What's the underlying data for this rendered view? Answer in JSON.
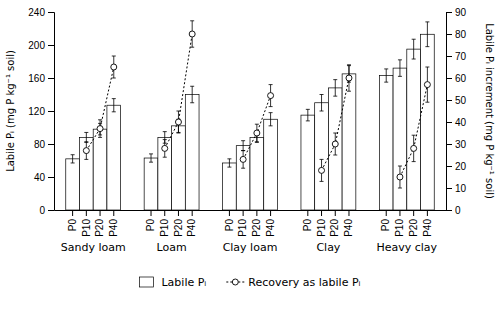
{
  "chart_data": {
    "type": "bar",
    "categories": [
      "Sandy loam",
      "Loam",
      "Clay loam",
      "Clay",
      "Heavy clay"
    ],
    "subcategories": [
      "P0",
      "P10",
      "P20",
      "P40"
    ],
    "series": [
      {
        "name": "Labile Pᵢ",
        "type": "bar",
        "color": "white",
        "values": [
          [
            62,
            88,
            98,
            127
          ],
          [
            63,
            88,
            102,
            140
          ],
          [
            57,
            78,
            88,
            110
          ],
          [
            115,
            130,
            148,
            165
          ],
          [
            163,
            172,
            195,
            213
          ]
        ],
        "errors": [
          [
            5,
            6,
            7,
            8
          ],
          [
            5,
            7,
            8,
            10
          ],
          [
            5,
            6,
            6,
            8
          ],
          [
            7,
            10,
            10,
            10
          ],
          [
            8,
            10,
            12,
            15
          ]
        ]
      },
      {
        "name": "Recovery as labile Pᵢ",
        "type": "line",
        "axis": "y2",
        "color": "black",
        "line_style": "dotted",
        "marker": "circle",
        "values": [
          [
            null,
            27,
            37,
            65
          ],
          [
            null,
            28,
            40,
            80
          ],
          [
            null,
            23,
            35,
            52
          ],
          [
            null,
            18,
            30,
            60
          ],
          [
            null,
            15,
            28,
            57
          ]
        ],
        "errors": [
          [
            null,
            4,
            4,
            5
          ],
          [
            null,
            4,
            5,
            6
          ],
          [
            null,
            4,
            4,
            5
          ],
          [
            null,
            5,
            5,
            6
          ],
          [
            null,
            5,
            6,
            8
          ]
        ]
      }
    ],
    "ylabel": "Labile Pᵢ (mg P kg⁻¹ soil)",
    "y2label": "Labile Pᵢ increment (mg P kg⁻¹ soil)",
    "ylim": [
      0,
      240
    ],
    "yticks": [
      0,
      40,
      80,
      120,
      160,
      200,
      240
    ],
    "y2lim": [
      0,
      90
    ],
    "y2ticks": [
      0,
      10,
      20,
      30,
      40,
      50,
      60,
      70,
      80,
      90
    ],
    "grid": false,
    "legend": "bottom"
  }
}
